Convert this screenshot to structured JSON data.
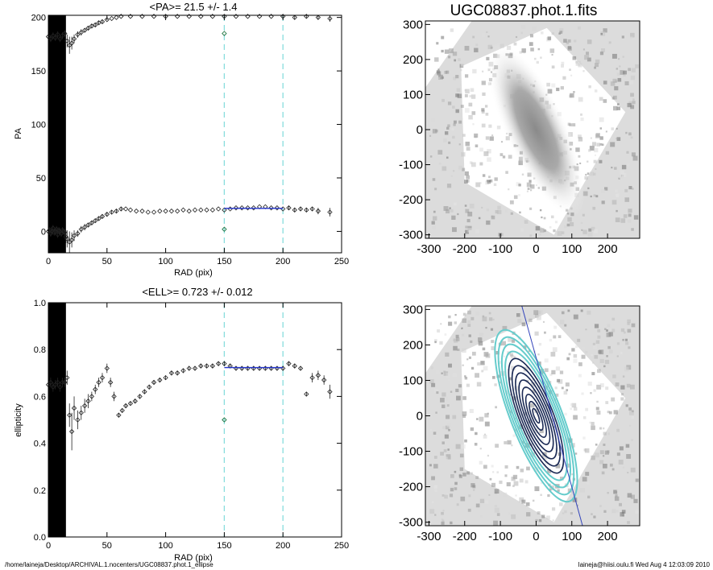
{
  "footer": {
    "path": "/home/laineja/Desktop/ARCHIVAL.1.nocenters/UGC08837.phot.1_ellipse",
    "user_time": "laineja@hiisi.oulu.fi  Wed Aug  4 12:03:09 2010"
  },
  "colors": {
    "profile": "#222222",
    "fit": "#2233cc",
    "marker": "#88dddd",
    "core_band": "#000000"
  },
  "chart_data": [
    {
      "type": "scatter",
      "title": "<PA>=  21.5 +/-   1.4",
      "xlabel": "RAD (pix)",
      "ylabel": "PA",
      "xlim": [
        0,
        250
      ],
      "ylim": [
        -20,
        202
      ],
      "xticks": [
        0,
        50,
        100,
        150,
        200,
        250
      ],
      "yticks": [
        0,
        50,
        100,
        150,
        200
      ],
      "vlines": [
        150,
        200
      ],
      "series": [
        {
          "x": [
            0,
            1,
            2,
            3,
            4,
            5,
            6,
            7,
            8,
            9,
            10,
            11,
            12,
            13,
            14,
            15,
            16,
            18,
            20,
            22,
            25,
            28,
            31,
            34,
            37,
            40,
            43,
            46,
            50,
            54,
            58,
            62,
            66,
            70,
            75,
            80,
            85,
            90,
            95,
            100,
            105,
            110,
            115,
            120,
            125,
            130,
            135,
            140,
            145,
            150,
            155,
            160,
            165,
            170,
            175,
            180,
            185,
            190,
            195,
            200,
            205,
            210,
            215,
            220,
            225,
            230,
            240
          ],
          "y": [
            0,
            1,
            -2,
            0,
            3,
            -1,
            0,
            2,
            -3,
            1,
            0,
            -2,
            1,
            0,
            -1,
            -5,
            -7,
            -10,
            -8,
            -4,
            -2,
            2,
            4,
            6,
            8,
            10,
            12,
            14,
            16,
            18,
            19,
            21,
            21,
            20,
            19,
            19,
            18,
            18,
            19,
            19,
            19,
            19,
            20,
            19,
            20,
            20,
            20,
            20,
            21,
            20,
            21,
            22,
            22,
            22,
            22,
            23,
            23,
            22,
            22,
            21,
            22,
            20,
            21,
            20,
            21,
            19,
            18
          ],
          "yerr": [
            3,
            3,
            3,
            3,
            3,
            3,
            3,
            3,
            3,
            3,
            3,
            3,
            3,
            3,
            3,
            6,
            8,
            10,
            7,
            5,
            3,
            3,
            3,
            2,
            2,
            2,
            2,
            2,
            2,
            2,
            2,
            2,
            1,
            1,
            1,
            1,
            1,
            1,
            1,
            1,
            1,
            1,
            1,
            1,
            1,
            1,
            1,
            1,
            1,
            1,
            1,
            1,
            1,
            1,
            1,
            1,
            1,
            1,
            1,
            1,
            2,
            2,
            2,
            2,
            2,
            3,
            4
          ]
        },
        {
          "x": [
            0,
            2,
            4,
            6,
            8,
            10,
            12,
            14,
            16,
            18,
            20,
            22,
            25,
            28,
            31,
            34,
            37,
            40,
            43,
            46,
            50,
            54,
            58,
            62,
            70,
            80,
            90,
            100,
            110,
            120,
            130,
            140,
            150,
            160,
            170,
            180,
            190,
            200,
            210,
            220,
            230,
            240
          ],
          "y": [
            182,
            180,
            183,
            181,
            184,
            180,
            183,
            185,
            178,
            174,
            176,
            180,
            184,
            186,
            188,
            190,
            192,
            193,
            195,
            196,
            198,
            199,
            200,
            201,
            201,
            201,
            201,
            201,
            201,
            201,
            201,
            201,
            201,
            201,
            201,
            201,
            201,
            201,
            200,
            201,
            200,
            199
          ],
          "yerr": [
            3,
            3,
            3,
            3,
            3,
            3,
            3,
            3,
            6,
            8,
            6,
            4,
            3,
            3,
            2,
            2,
            2,
            2,
            2,
            2,
            1,
            1,
            1,
            1,
            1,
            1,
            1,
            1,
            1,
            1,
            1,
            1,
            1,
            1,
            1,
            1,
            1,
            1,
            2,
            2,
            2,
            3
          ]
        }
      ],
      "outliers": [
        {
          "x": 150,
          "y": 185
        },
        {
          "x": 150,
          "y": 2
        }
      ],
      "fit": {
        "x": [
          150,
          200
        ],
        "y": 21.5
      }
    },
    {
      "type": "scatter",
      "title": "<ELL>= 0.723 +/-  0.012",
      "xlabel": "RAD (pix)",
      "ylabel": "ellipticity",
      "xlim": [
        0,
        250
      ],
      "ylim": [
        0,
        1
      ],
      "xticks": [
        0,
        50,
        100,
        150,
        200,
        250
      ],
      "yticks": [
        0.0,
        0.2,
        0.4,
        0.6,
        0.8,
        1.0
      ],
      "vlines": [
        150,
        200
      ],
      "series": [
        {
          "x": [
            0,
            2,
            4,
            6,
            8,
            10,
            12,
            14,
            16,
            18,
            20,
            22,
            25,
            28,
            31,
            34,
            37,
            40,
            43,
            46,
            50,
            53,
            56,
            60,
            63,
            66,
            70,
            74,
            78,
            82,
            86,
            90,
            95,
            100,
            105,
            110,
            115,
            120,
            125,
            130,
            135,
            140,
            145,
            150,
            155,
            160,
            165,
            170,
            175,
            180,
            185,
            190,
            195,
            200,
            205,
            210,
            215,
            220,
            225,
            230,
            235,
            240
          ],
          "y": [
            0.65,
            0.66,
            0.64,
            0.65,
            0.66,
            0.64,
            0.66,
            0.66,
            0.68,
            0.52,
            0.45,
            0.55,
            0.5,
            0.53,
            0.56,
            0.58,
            0.6,
            0.63,
            0.66,
            0.68,
            0.72,
            0.66,
            0.6,
            0.52,
            0.54,
            0.56,
            0.57,
            0.58,
            0.6,
            0.62,
            0.64,
            0.66,
            0.67,
            0.68,
            0.7,
            0.7,
            0.71,
            0.72,
            0.72,
            0.73,
            0.73,
            0.73,
            0.74,
            0.74,
            0.73,
            0.72,
            0.72,
            0.72,
            0.72,
            0.72,
            0.72,
            0.72,
            0.72,
            0.72,
            0.74,
            0.73,
            0.72,
            0.61,
            0.68,
            0.69,
            0.67,
            0.62
          ],
          "yerr": [
            0.02,
            0.02,
            0.02,
            0.02,
            0.02,
            0.02,
            0.02,
            0.02,
            0.03,
            0.05,
            0.08,
            0.05,
            0.04,
            0.03,
            0.03,
            0.03,
            0.02,
            0.02,
            0.02,
            0.02,
            0.02,
            0.02,
            0.02,
            0.01,
            0.01,
            0.01,
            0.01,
            0.01,
            0.01,
            0.01,
            0.01,
            0.01,
            0.01,
            0.01,
            0.01,
            0.01,
            0.01,
            0.01,
            0.01,
            0.01,
            0.01,
            0.01,
            0.01,
            0.01,
            0.01,
            0.01,
            0.01,
            0.01,
            0.01,
            0.01,
            0.01,
            0.01,
            0.01,
            0.01,
            0.01,
            0.01,
            0.01,
            0.01,
            0.02,
            0.02,
            0.02,
            0.03
          ]
        }
      ],
      "outliers": [
        {
          "x": 150,
          "y": 0.5
        }
      ],
      "fit": {
        "x": [
          150,
          200
        ],
        "y": 0.723
      }
    },
    {
      "type": "heatmap",
      "title": "UGC08837.phot.1.fits",
      "xlim": [
        -310,
        290
      ],
      "ylim": [
        -310,
        310
      ],
      "xticks": [
        -300,
        -200,
        -100,
        0,
        100,
        200
      ],
      "yticks": [
        -300,
        -200,
        -100,
        0,
        100,
        200,
        300
      ]
    },
    {
      "type": "heatmap",
      "title": "",
      "xlim": [
        -310,
        290
      ],
      "ylim": [
        -310,
        310
      ],
      "xticks": [
        -300,
        -200,
        -100,
        0,
        100,
        200
      ],
      "yticks": [
        -300,
        -200,
        -100,
        0,
        100,
        200,
        300
      ],
      "major_axis_line": {
        "from": [
          -40,
          310
        ],
        "to": [
          130,
          -310
        ]
      },
      "isophotes_pa_deg": 21.5,
      "isophotes_ell": 0.723
    }
  ]
}
